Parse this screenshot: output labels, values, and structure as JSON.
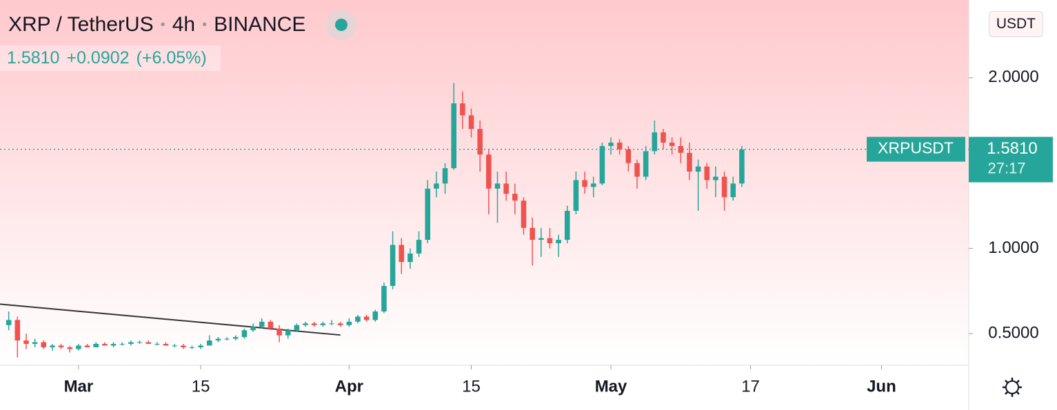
{
  "header": {
    "title": "XRP / TetherUS",
    "interval": "4h",
    "exchange": "BINANCE",
    "last": "1.5810",
    "change": "+0.0902",
    "change_pct": "(+6.05%)",
    "currency": "USDT"
  },
  "chart_data": {
    "type": "candlestick",
    "x": [
      "02-21",
      "02-22",
      "02-23",
      "02-24",
      "02-25",
      "02-26",
      "02-27",
      "02-28",
      "03-01",
      "03-02",
      "03-03",
      "03-04",
      "03-05",
      "03-06",
      "03-07",
      "03-08",
      "03-09",
      "03-10",
      "03-11",
      "03-12",
      "03-13",
      "03-14",
      "03-15",
      "03-16",
      "03-17",
      "03-18",
      "03-19",
      "03-20",
      "03-21",
      "03-22",
      "03-23",
      "03-24",
      "03-25",
      "03-26",
      "03-27",
      "03-28",
      "03-29",
      "03-30",
      "03-31",
      "04-01",
      "04-02",
      "04-03",
      "04-04",
      "04-05",
      "04-06",
      "04-07",
      "04-08",
      "04-09",
      "04-10",
      "04-11",
      "04-12",
      "04-13",
      "04-14",
      "04-15",
      "04-16",
      "04-17",
      "04-18",
      "04-19",
      "04-20",
      "04-21",
      "04-22",
      "04-23",
      "04-24",
      "04-25",
      "04-26",
      "04-27",
      "04-28",
      "04-29",
      "04-30",
      "05-01",
      "05-02",
      "05-03",
      "05-04",
      "05-05",
      "05-06",
      "05-07",
      "05-08",
      "05-09",
      "05-10",
      "05-11",
      "05-12",
      "05-13",
      "05-14",
      "05-15",
      "05-16"
    ],
    "open": [
      0.55,
      0.58,
      0.46,
      0.44,
      0.45,
      0.42,
      0.43,
      0.42,
      0.41,
      0.43,
      0.42,
      0.44,
      0.43,
      0.44,
      0.44,
      0.45,
      0.45,
      0.44,
      0.44,
      0.43,
      0.43,
      0.42,
      0.42,
      0.43,
      0.46,
      0.47,
      0.47,
      0.48,
      0.52,
      0.54,
      0.57,
      0.53,
      0.49,
      0.52,
      0.55,
      0.56,
      0.55,
      0.56,
      0.56,
      0.55,
      0.57,
      0.6,
      0.58,
      0.63,
      0.78,
      1.02,
      0.92,
      0.97,
      1.05,
      1.35,
      1.38,
      1.47,
      1.85,
      1.78,
      1.7,
      1.55,
      1.35,
      1.38,
      1.32,
      1.28,
      1.12,
      1.05,
      1.06,
      1.03,
      1.05,
      1.22,
      1.4,
      1.36,
      1.38,
      1.6,
      1.62,
      1.58,
      1.5,
      1.42,
      1.57,
      1.68,
      1.62,
      1.6,
      1.56,
      1.45,
      1.48,
      1.4,
      1.42,
      1.3,
      1.38
    ],
    "high": [
      0.63,
      0.6,
      0.5,
      0.47,
      0.46,
      0.44,
      0.44,
      0.43,
      0.44,
      0.44,
      0.45,
      0.45,
      0.45,
      0.45,
      0.46,
      0.46,
      0.46,
      0.45,
      0.45,
      0.44,
      0.44,
      0.43,
      0.44,
      0.49,
      0.48,
      0.48,
      0.49,
      0.53,
      0.56,
      0.59,
      0.58,
      0.55,
      0.53,
      0.56,
      0.57,
      0.57,
      0.57,
      0.58,
      0.57,
      0.59,
      0.61,
      0.61,
      0.64,
      0.8,
      1.1,
      1.06,
      1.0,
      1.1,
      1.4,
      1.45,
      1.5,
      1.97,
      1.92,
      1.82,
      1.75,
      1.58,
      1.45,
      1.45,
      1.38,
      1.3,
      1.18,
      1.12,
      1.12,
      1.08,
      1.25,
      1.45,
      1.45,
      1.42,
      1.62,
      1.65,
      1.64,
      1.6,
      1.52,
      1.6,
      1.75,
      1.7,
      1.65,
      1.65,
      1.62,
      1.52,
      1.5,
      1.48,
      1.45,
      1.42,
      1.6
    ],
    "low": [
      0.52,
      0.36,
      0.41,
      0.42,
      0.41,
      0.4,
      0.41,
      0.39,
      0.4,
      0.42,
      0.42,
      0.43,
      0.42,
      0.43,
      0.43,
      0.44,
      0.44,
      0.43,
      0.43,
      0.42,
      0.41,
      0.41,
      0.41,
      0.43,
      0.45,
      0.46,
      0.46,
      0.47,
      0.51,
      0.53,
      0.52,
      0.45,
      0.47,
      0.51,
      0.54,
      0.54,
      0.54,
      0.55,
      0.54,
      0.54,
      0.56,
      0.57,
      0.57,
      0.62,
      0.76,
      0.85,
      0.88,
      0.95,
      1.03,
      1.3,
      1.32,
      1.46,
      1.7,
      1.65,
      1.45,
      1.2,
      1.15,
      1.28,
      1.2,
      1.08,
      0.9,
      0.95,
      1.0,
      0.95,
      1.03,
      1.2,
      1.32,
      1.3,
      1.37,
      1.55,
      1.55,
      1.45,
      1.35,
      1.4,
      1.55,
      1.58,
      1.55,
      1.5,
      1.4,
      1.22,
      1.35,
      1.3,
      1.22,
      1.28,
      1.36
    ],
    "close": [
      0.58,
      0.46,
      0.44,
      0.45,
      0.42,
      0.43,
      0.42,
      0.41,
      0.43,
      0.42,
      0.44,
      0.43,
      0.44,
      0.44,
      0.45,
      0.45,
      0.44,
      0.44,
      0.43,
      0.43,
      0.42,
      0.42,
      0.43,
      0.46,
      0.47,
      0.47,
      0.48,
      0.52,
      0.54,
      0.57,
      0.53,
      0.49,
      0.52,
      0.55,
      0.56,
      0.55,
      0.56,
      0.56,
      0.55,
      0.57,
      0.6,
      0.58,
      0.63,
      0.78,
      1.02,
      0.92,
      0.97,
      1.05,
      1.35,
      1.38,
      1.47,
      1.85,
      1.78,
      1.7,
      1.55,
      1.35,
      1.38,
      1.32,
      1.28,
      1.12,
      1.05,
      1.06,
      1.03,
      1.05,
      1.22,
      1.4,
      1.36,
      1.38,
      1.6,
      1.62,
      1.58,
      1.5,
      1.42,
      1.57,
      1.68,
      1.62,
      1.6,
      1.56,
      1.45,
      1.48,
      1.4,
      1.42,
      1.3,
      1.38,
      1.58
    ],
    "up_color": "#26a69a",
    "down_color": "#ef5350",
    "xlim": [
      "02-20",
      "06-11"
    ],
    "xticks": [
      {
        "value": "03-01",
        "label": "Mar"
      },
      {
        "value": "03-15",
        "label": "15"
      },
      {
        "value": "04-01",
        "label": "Apr"
      },
      {
        "value": "04-15",
        "label": "15"
      },
      {
        "value": "05-01",
        "label": "May"
      },
      {
        "value": "05-17",
        "label": "17"
      },
      {
        "value": "06-01",
        "label": "Jun"
      }
    ],
    "ylim": [
      0.315,
      2.456
    ],
    "yticks": [
      {
        "value": 0.5,
        "label": "0.5000"
      },
      {
        "value": 1.0,
        "label": "1.0000"
      },
      {
        "value": 2.0,
        "label": "2.0000"
      }
    ],
    "last_price": {
      "value": 1.581,
      "label": "1.5810"
    },
    "symbol": "XRPUSDT",
    "countdown": "27:17",
    "trendline": {
      "x": [
        "02-20",
        "03-31"
      ],
      "y": [
        0.673,
        0.492
      ]
    }
  }
}
